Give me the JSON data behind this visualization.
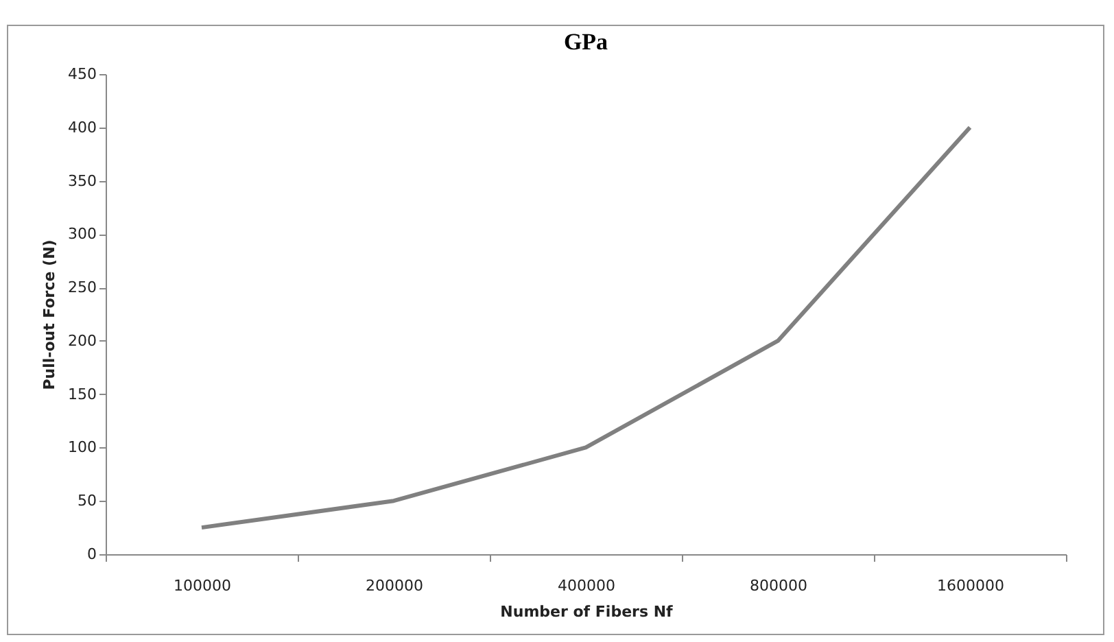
{
  "chart_data": {
    "type": "line",
    "title": "GPa",
    "xlabel": "Number of Fibers Nf",
    "ylabel": "Pull-out Force  (N)",
    "categories": [
      "100000",
      "200000",
      "400000",
      "800000",
      "1600000"
    ],
    "series": [
      {
        "color": "#808080",
        "values": [
          25,
          50,
          100,
          200,
          400
        ]
      }
    ],
    "ylim": [
      0,
      450
    ],
    "yticks": [
      0,
      50,
      100,
      150,
      200,
      250,
      300,
      350,
      400,
      450
    ],
    "grid": false,
    "legend": false,
    "marker": "none",
    "line_style": "solid"
  }
}
